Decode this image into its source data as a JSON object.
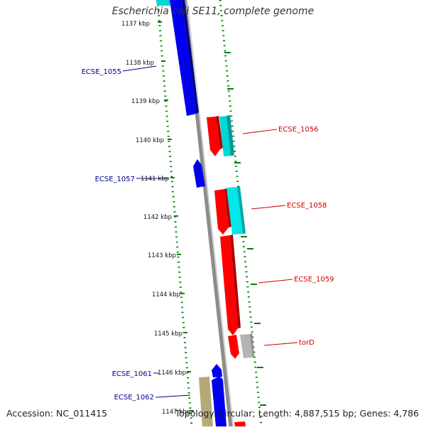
{
  "title": "Escherichia coli SE11, complete genome",
  "accession_text": "Accession: NC_011415",
  "summary_text": "Topology: circular; Length: 4,887,515 bp; Genes: 4,786",
  "ticks": [
    "1137 kbp",
    "1138 kbp",
    "1139 kbp",
    "1140 kbp",
    "1141 kbp",
    "1142 kbp",
    "1143 kbp",
    "1144 kbp",
    "1145 kbp",
    "1146 kbp",
    "1147 kbp"
  ],
  "gene_labels_left": [
    "ECSE_1055",
    "ECSE_1057",
    "ECSE_1061",
    "ECSE_1062"
  ],
  "gene_labels_right": [
    "ECSE_1056",
    "ECSE_1058",
    "ECSE_1059",
    "torD"
  ],
  "colors": {
    "forward": "#0000ee",
    "reverse": "#ff0000",
    "cyan": "#00d7d7",
    "gray": "#b4b4b4",
    "olive": "#b4aa78",
    "backbone": "#8c8c8c",
    "ruler": "#008000",
    "left_label": "#00008b",
    "right_label": "#cc0000"
  }
}
